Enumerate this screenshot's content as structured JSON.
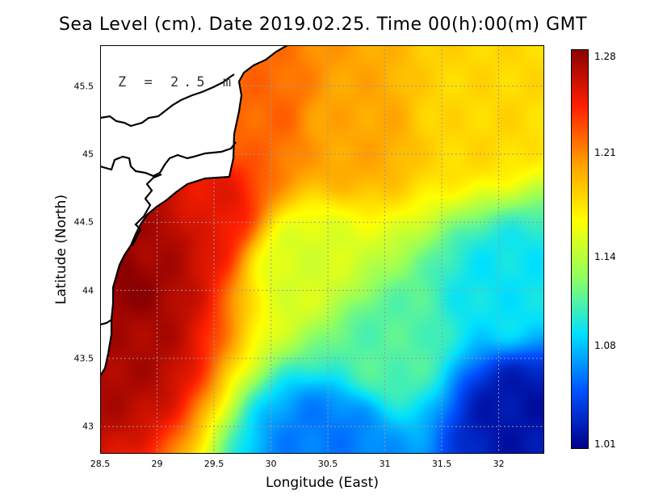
{
  "chart_data": {
    "type": "heatmap",
    "title": "Sea Level (cm). Date 2019.02.25. Time 00(h):00(m) GMT",
    "xlabel": "Longitude (East)",
    "ylabel": "Latitude (North)",
    "xlim": [
      28.5,
      32.4
    ],
    "ylim": [
      42.8,
      45.8
    ],
    "x_ticks": [
      "28.5",
      "29",
      "29.5",
      "30",
      "30.5",
      "31",
      "31.5",
      "32"
    ],
    "y_ticks": [
      "43",
      "43.5",
      "44",
      "44.5",
      "45",
      "45.5"
    ],
    "colorbar": {
      "ticks": [
        "1.28",
        "1.21",
        "1.14",
        "1.08",
        "1.01"
      ],
      "range": [
        1.01,
        1.28
      ],
      "colors": [
        "#00008b",
        "#0050ff",
        "#00e0ff",
        "#90ff60",
        "#ffff00",
        "#ffa000",
        "#ff2000",
        "#8b0000"
      ]
    },
    "annotation": "Z = 2.5 m",
    "grid": true,
    "field_samples": [
      {
        "lon": 28.65,
        "lat": 44.1,
        "value": 1.28
      },
      {
        "lon": 28.6,
        "lat": 43.6,
        "value": 1.27
      },
      {
        "lon": 29.0,
        "lat": 44.4,
        "value": 1.27
      },
      {
        "lon": 29.4,
        "lat": 44.6,
        "value": 1.25
      },
      {
        "lon": 29.9,
        "lat": 45.3,
        "value": 1.22
      },
      {
        "lon": 30.7,
        "lat": 45.2,
        "value": 1.2
      },
      {
        "lon": 31.8,
        "lat": 45.3,
        "value": 1.18
      },
      {
        "lon": 30.3,
        "lat": 44.2,
        "value": 1.15
      },
      {
        "lon": 31.0,
        "lat": 43.6,
        "value": 1.11
      },
      {
        "lon": 32.1,
        "lat": 44.0,
        "value": 1.09
      },
      {
        "lon": 32.2,
        "lat": 43.1,
        "value": 1.02
      },
      {
        "lon": 30.5,
        "lat": 42.9,
        "value": 1.06
      }
    ]
  }
}
